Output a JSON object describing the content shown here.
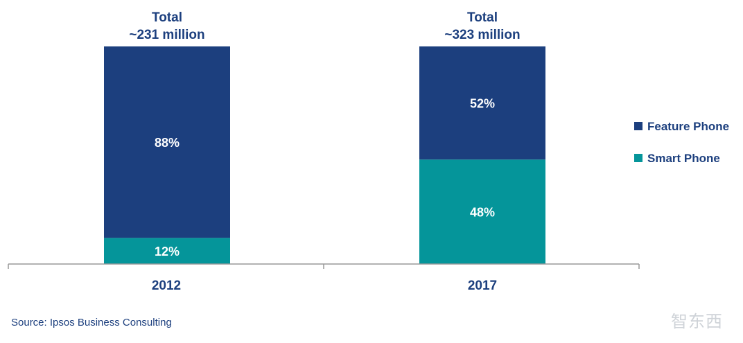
{
  "chart_data": {
    "type": "bar",
    "stacked": true,
    "percent_stacked": true,
    "categories": [
      "2012",
      "2017"
    ],
    "totals": [
      "Total\n~231 million",
      "Total\n~323 million"
    ],
    "series": [
      {
        "name": "Smart Phone",
        "values": [
          12,
          48
        ],
        "labels": [
          "12%",
          "48%"
        ],
        "color": "#05959a"
      },
      {
        "name": "Feature Phone",
        "values": [
          88,
          52
        ],
        "labels": [
          "88%",
          "52%"
        ],
        "color": "#1c3f7e"
      }
    ],
    "ylim": [
      0,
      100
    ],
    "legend_position": "right",
    "legend_order": [
      "Feature Phone",
      "Smart Phone"
    ],
    "axis_color": "#999999",
    "text_color": "#1c3f7e"
  },
  "source": "Source: Ipsos Business Consulting",
  "watermark": "智东西"
}
